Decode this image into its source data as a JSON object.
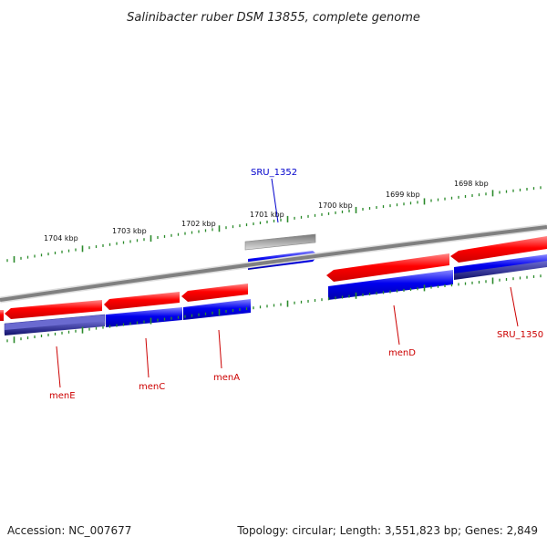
{
  "title": "Salinibacter ruber DSM 13855, complete genome",
  "footer": {
    "accession": "Accession: NC_007677",
    "summary": "Topology: circular; Length: 3,551,823 bp; Genes: 2,849"
  },
  "ticks": [
    "1704 kbp",
    "1703 kbp",
    "1702 kbp",
    "1701 kbp",
    "1700 kbp",
    "1699 kbp",
    "1698 kbp"
  ],
  "gene_labels": [
    {
      "name": "menE",
      "color": "#cc0000"
    },
    {
      "name": "menC",
      "color": "#cc0000"
    },
    {
      "name": "menA",
      "color": "#cc0000"
    },
    {
      "name": "menD",
      "color": "#cc0000"
    },
    {
      "name": "SRU_1350",
      "color": "#cc0000"
    },
    {
      "name": "SRU_1352",
      "color": "#0000cc"
    }
  ],
  "colors": {
    "forward_cds": "#ff0000",
    "reverse_cds": "#0000e0",
    "backbone": "#8a8a8a",
    "ticks": "#2a8a2a",
    "other_feature": "#bbbbbb",
    "dark_feature": "#1a1a7a"
  }
}
